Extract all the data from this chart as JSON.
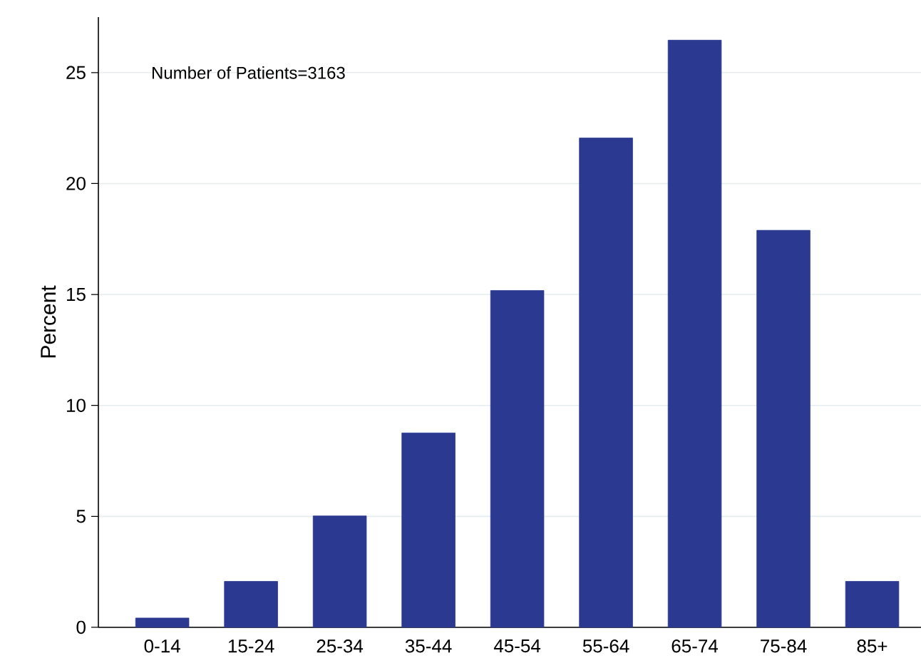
{
  "chart_data": {
    "type": "bar",
    "ylabel": "Percent",
    "categories": [
      "0-14",
      "15-24",
      "25-34",
      "35-44",
      "45-54",
      "55-64",
      "65-74",
      "75-84",
      "85+"
    ],
    "values": [
      0.42,
      2.07,
      5.02,
      8.76,
      15.18,
      22.05,
      26.46,
      17.89,
      2.07
    ],
    "color": "#2b3990",
    "ylim": [
      0,
      27.5
    ],
    "yticks": [
      0,
      5,
      10,
      15,
      20,
      25
    ],
    "grid": "y",
    "annotations": [
      "Number of Patients=3163"
    ]
  }
}
